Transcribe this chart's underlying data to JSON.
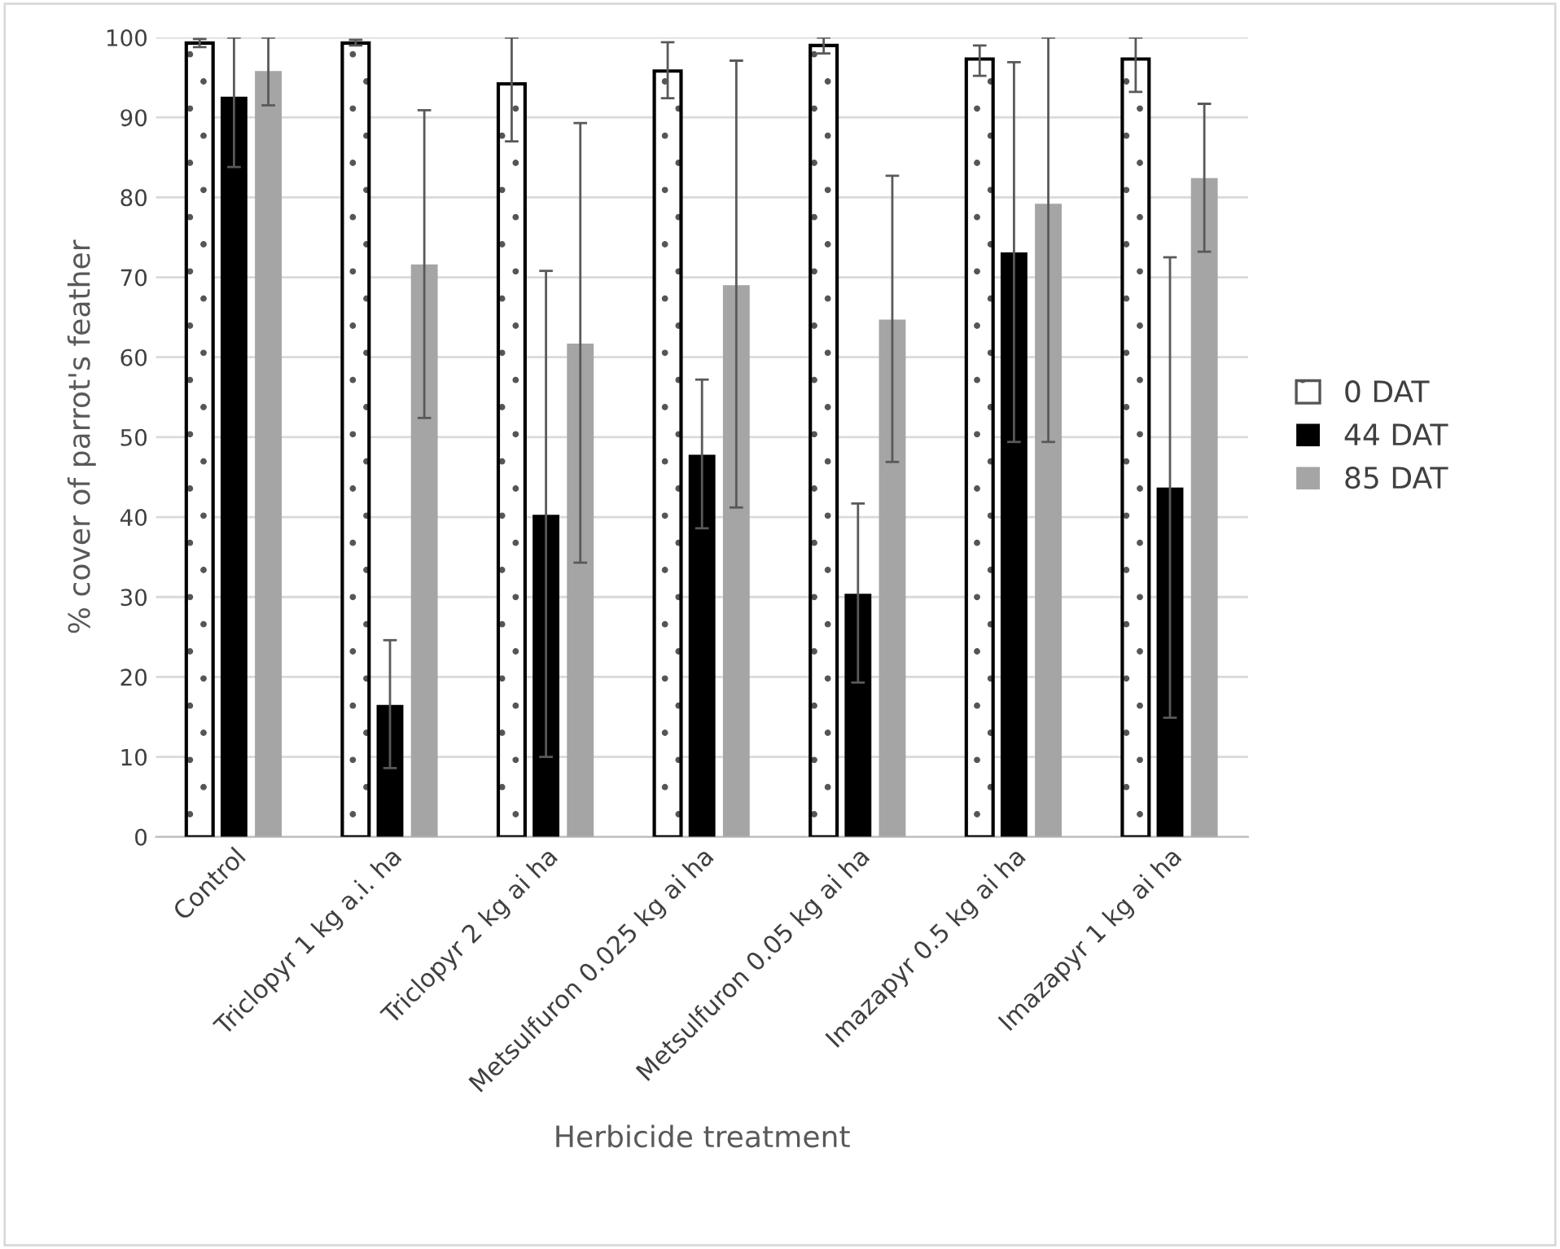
{
  "chart_data": {
    "type": "bar",
    "xlabel": "Herbicide treatment",
    "ylabel": "% cover of parrot's feather",
    "categories": [
      "Control",
      "Triclopyr 1 kg a.i. ha",
      "Triclopyr 2 kg ai ha",
      "Metsulfuron 0.025 kg ai ha",
      "Metsulfuron 0.05 kg ai ha",
      "Imazapyr 0.5 kg ai ha",
      "Imazapyr 1 kg ai ha"
    ],
    "series": [
      {
        "name": "0 DAT",
        "color": "#ffffff",
        "values": [
          99.3,
          99.3,
          94.2,
          95.8,
          99.0,
          97.3,
          97.3
        ],
        "errors": [
          [
            98.8,
            99.8
          ],
          [
            99.0,
            99.7
          ],
          [
            87.0,
            100
          ],
          [
            92.4,
            99.4
          ],
          [
            98.0,
            100
          ],
          [
            95.2,
            99.0
          ],
          [
            93.2,
            100
          ]
        ]
      },
      {
        "name": "44 DAT",
        "color": "#000000",
        "values": [
          92.6,
          16.5,
          40.3,
          47.8,
          30.4,
          73.1,
          43.7
        ],
        "errors": [
          [
            83.8,
            100
          ],
          [
            8.6,
            24.6
          ],
          [
            10.0,
            70.8
          ],
          [
            38.6,
            57.2
          ],
          [
            19.3,
            41.7
          ],
          [
            49.4,
            96.9
          ],
          [
            14.9,
            72.5
          ]
        ]
      },
      {
        "name": "85 DAT",
        "color": "#a5a5a5",
        "values": [
          95.8,
          71.6,
          61.7,
          69.0,
          64.7,
          79.2,
          82.4
        ],
        "errors": [
          [
            91.5,
            100
          ],
          [
            52.4,
            90.9
          ],
          [
            34.3,
            89.3
          ],
          [
            41.2,
            97.1
          ],
          [
            46.9,
            82.7
          ],
          [
            49.4,
            100
          ],
          [
            73.2,
            91.7
          ]
        ]
      }
    ],
    "ylim": [
      0,
      100
    ],
    "yticks": [
      0,
      10,
      20,
      30,
      40,
      50,
      60,
      70,
      80,
      90,
      100
    ],
    "grid": "y",
    "legend": "right"
  }
}
